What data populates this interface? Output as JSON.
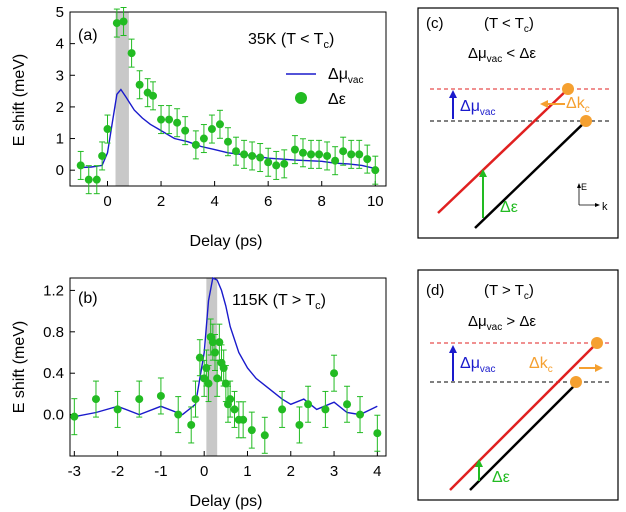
{
  "colors": {
    "green": "#22bb22",
    "blue": "#1a1acc",
    "red": "#e02020",
    "orange": "#f5a030",
    "shade": "#c8c8c8"
  },
  "chart_data": [
    {
      "type": "line",
      "panel": "(a)",
      "title": "35K (T < T",
      "title_sub": "c",
      "title_end": ")",
      "xlabel": "Delay (ps)",
      "ylabel": "E shift (meV)",
      "xlim": [
        -1.4,
        10.4
      ],
      "ylim": [
        -0.5,
        5.0
      ],
      "xticks": [
        0,
        2,
        4,
        6,
        8,
        10
      ],
      "yticks": [
        0,
        1,
        2,
        3,
        4,
        5
      ],
      "shaded": [
        0.3,
        0.8
      ],
      "legend": {
        "line": "Δμ",
        "line_sub": "vac",
        "dots": "Δε",
        "placement": "top-right"
      },
      "series": [
        {
          "name": "Δμvac",
          "style": "line",
          "x": [
            -1.1,
            -0.6,
            -0.2,
            0.0,
            0.2,
            0.35,
            0.5,
            0.7,
            1.0,
            1.3,
            1.6,
            2.0,
            2.5,
            3.0,
            3.5,
            4.0,
            4.5,
            5.0,
            5.5,
            6.0,
            6.5,
            7.0,
            7.5,
            8.0,
            8.5,
            9.0,
            9.5,
            10.0
          ],
          "y": [
            0.08,
            0.1,
            0.15,
            0.55,
            1.6,
            2.4,
            2.55,
            2.3,
            1.9,
            1.65,
            1.45,
            1.25,
            1.0,
            0.9,
            0.75,
            0.65,
            0.55,
            0.5,
            0.45,
            0.38,
            0.35,
            0.32,
            0.3,
            0.28,
            0.22,
            0.2,
            0.15,
            0.05
          ]
        },
        {
          "name": "Δε",
          "style": "points",
          "x": [
            -1.0,
            -0.7,
            -0.4,
            -0.2,
            0.0,
            0.35,
            0.6,
            0.9,
            1.2,
            1.5,
            1.7,
            2.0,
            2.3,
            2.6,
            2.9,
            3.3,
            3.6,
            3.9,
            4.2,
            4.5,
            4.8,
            5.1,
            5.4,
            5.7,
            6.0,
            6.3,
            6.6,
            7.0,
            7.3,
            7.6,
            7.9,
            8.2,
            8.5,
            8.8,
            9.1,
            9.4,
            9.7,
            10.0
          ],
          "y": [
            0.15,
            -0.3,
            -0.3,
            0.45,
            1.3,
            4.65,
            4.7,
            3.7,
            2.7,
            2.45,
            2.35,
            1.6,
            1.6,
            1.5,
            1.25,
            0.8,
            1.0,
            1.3,
            1.45,
            0.9,
            0.6,
            0.5,
            0.45,
            0.4,
            0.25,
            0.15,
            0.2,
            0.65,
            0.55,
            0.5,
            0.5,
            0.45,
            0.3,
            0.6,
            0.5,
            0.5,
            0.35,
            0.0
          ]
        }
      ]
    },
    {
      "type": "line",
      "panel": "(b)",
      "title": "115K (T > T",
      "title_sub": "c",
      "title_end": ")",
      "xlabel": "Delay (ps)",
      "ylabel": "E shift (meV)",
      "xlim": [
        -3.1,
        4.2
      ],
      "ylim": [
        -0.4,
        1.32
      ],
      "xticks": [
        -3,
        -2,
        -1,
        0,
        1,
        2,
        3,
        4
      ],
      "yticks": [
        0.0,
        0.4,
        0.8,
        1.2
      ],
      "ytick_labels": [
        "0.0",
        "0.4",
        "0.8",
        "1.2"
      ],
      "shaded": [
        0.05,
        0.3
      ],
      "series": [
        {
          "name": "Δμvac",
          "style": "line",
          "x": [
            -3.0,
            -2.5,
            -2.0,
            -1.5,
            -1.0,
            -0.5,
            -0.2,
            0.0,
            0.1,
            0.2,
            0.3,
            0.4,
            0.5,
            0.6,
            0.8,
            1.0,
            1.2,
            1.5,
            1.8,
            2.0,
            2.3,
            2.6,
            3.0,
            3.3,
            3.6,
            4.0
          ],
          "y": [
            -0.02,
            0.02,
            0.08,
            0.0,
            0.08,
            0.0,
            0.1,
            0.6,
            1.1,
            1.32,
            1.3,
            1.2,
            1.05,
            0.85,
            0.6,
            0.45,
            0.35,
            0.25,
            0.15,
            0.1,
            0.15,
            0.05,
            0.12,
            0.02,
            0.0,
            0.08
          ]
        },
        {
          "name": "Δε",
          "style": "points",
          "x": [
            -3.0,
            -2.5,
            -2.0,
            -1.5,
            -1.0,
            -0.6,
            -0.3,
            -0.2,
            -0.1,
            0.0,
            0.05,
            0.1,
            0.15,
            0.2,
            0.25,
            0.3,
            0.35,
            0.4,
            0.45,
            0.5,
            0.55,
            0.6,
            0.7,
            0.8,
            0.9,
            1.1,
            1.4,
            1.8,
            2.2,
            2.4,
            2.8,
            3.0,
            3.3,
            3.6,
            4.0
          ],
          "y": [
            -0.02,
            0.15,
            0.05,
            0.15,
            0.18,
            0.0,
            -0.1,
            0.15,
            0.55,
            0.35,
            0.45,
            0.3,
            0.75,
            0.7,
            0.6,
            0.35,
            0.7,
            0.5,
            0.45,
            0.3,
            0.1,
            0.15,
            0.05,
            -0.05,
            -0.05,
            -0.15,
            -0.2,
            0.05,
            -0.1,
            0.1,
            0.05,
            0.4,
            0.1,
            0.0,
            -0.18
          ]
        }
      ]
    }
  ],
  "diagrams": [
    {
      "panel": "(c)",
      "condition": "(T < T",
      "condition_sub": "c",
      "condition_end": ")",
      "relation_left": "Δμ",
      "relation_sub": "vac",
      "relation_right": " < Δε",
      "mu_label": "Δμ",
      "mu_sub": "vac",
      "k_label": "Δk",
      "k_sub": "c",
      "eps_label": "Δε",
      "axis_e": "E",
      "axis_k": "k"
    },
    {
      "panel": "(d)",
      "condition": "(T > T",
      "condition_sub": "c",
      "condition_end": ")",
      "relation_left": "Δμ",
      "relation_sub": "vac",
      "relation_right": " > Δε",
      "mu_label": "Δμ",
      "mu_sub": "vac",
      "k_label": "Δk",
      "k_sub": "c",
      "eps_label": "Δε"
    }
  ]
}
